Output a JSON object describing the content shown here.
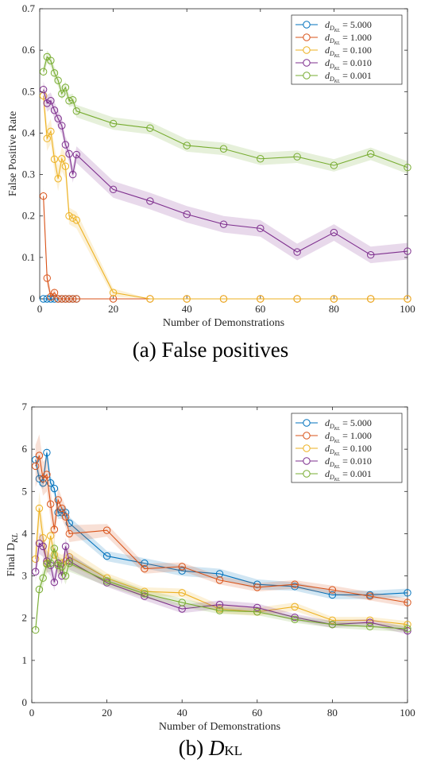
{
  "captions": {
    "a": "(a) False positives",
    "b_main": "D",
    "b_sub": "KL",
    "b_prefix": "(b) "
  },
  "legend_labels": [
    "= 5.000",
    "= 1.000",
    "= 0.100",
    "= 0.010",
    "= 0.001"
  ],
  "colors": {
    "5.000": "#0072BD",
    "1.000": "#D95319",
    "0.100": "#EDB120",
    "0.010": "#7E2F8E",
    "0.001": "#77AC30"
  },
  "chart_data": [
    {
      "type": "line",
      "xlabel": "Number of Demonstrations",
      "ylabel": "False Positive Rate",
      "xlim": [
        0,
        100
      ],
      "ylim": [
        0,
        0.7
      ],
      "xticks": [
        0,
        20,
        40,
        60,
        80,
        100
      ],
      "yticks": [
        0,
        0.1,
        0.2,
        0.3,
        0.4,
        0.5,
        0.6,
        0.7
      ],
      "ytick_labels": [
        "0",
        "0.1",
        "0.2",
        "0.3",
        "0.4",
        "0.5",
        "0.6",
        "0.7"
      ],
      "legend_position": "top-right",
      "series": [
        {
          "name": "5.000",
          "x": [
            1,
            2,
            3,
            4,
            5,
            6,
            7,
            8,
            9,
            10
          ],
          "y": [
            0,
            0,
            0,
            0,
            0,
            0,
            0,
            0,
            0,
            0
          ],
          "band": []
        },
        {
          "name": "1.000",
          "x": [
            1,
            2,
            3,
            4,
            5,
            6,
            7,
            8,
            9,
            10,
            20,
            30,
            40,
            50,
            60,
            70,
            80,
            90,
            100
          ],
          "y": [
            0.248,
            0.05,
            0.005,
            0.015,
            0,
            0,
            0,
            0,
            0,
            0,
            0,
            0,
            0,
            0,
            0,
            0,
            0,
            0,
            0
          ],
          "band": [
            0.02,
            0.02,
            0.01,
            0.01,
            0,
            0,
            0,
            0,
            0,
            0,
            0,
            0,
            0,
            0,
            0,
            0,
            0,
            0,
            0
          ]
        },
        {
          "name": "0.100",
          "x": [
            1,
            2,
            3,
            4,
            5,
            6,
            7,
            8,
            9,
            10,
            20,
            30,
            40,
            50,
            60,
            70,
            80,
            90,
            100
          ],
          "y": [
            0.49,
            0.387,
            0.404,
            0.337,
            0.29,
            0.338,
            0.32,
            0.2,
            0.195,
            0.19,
            0.015,
            0,
            0,
            0,
            0,
            0,
            0,
            0,
            0
          ],
          "band": [
            0.03,
            0.03,
            0.03,
            0.03,
            0.03,
            0.03,
            0.03,
            0.02,
            0.02,
            0.02,
            0.01,
            0,
            0,
            0,
            0,
            0,
            0,
            0,
            0
          ]
        },
        {
          "name": "0.010",
          "x": [
            1,
            2,
            3,
            4,
            5,
            6,
            7,
            8,
            9,
            10,
            20,
            30,
            40,
            50,
            60,
            70,
            80,
            90,
            100
          ],
          "y": [
            0.505,
            0.472,
            0.478,
            0.455,
            0.435,
            0.418,
            0.372,
            0.35,
            0.3,
            0.348,
            0.264,
            0.236,
            0.204,
            0.18,
            0.17,
            0.113,
            0.16,
            0.106,
            0.115
          ],
          "band": [
            0.02,
            0.02,
            0.02,
            0.02,
            0.02,
            0.02,
            0.02,
            0.02,
            0.02,
            0.02,
            0.02,
            0.02,
            0.02,
            0.02,
            0.02,
            0.02,
            0.02,
            0.02,
            0.02
          ]
        },
        {
          "name": "0.001",
          "x": [
            1,
            2,
            3,
            4,
            5,
            6,
            7,
            8,
            9,
            10,
            20,
            30,
            40,
            50,
            60,
            70,
            80,
            90,
            100
          ],
          "y": [
            0.548,
            0.584,
            0.575,
            0.545,
            0.527,
            0.495,
            0.51,
            0.478,
            0.48,
            0.453,
            0.423,
            0.412,
            0.37,
            0.362,
            0.338,
            0.343,
            0.322,
            0.35,
            0.317
          ],
          "band": [
            0.015,
            0.015,
            0.015,
            0.015,
            0.015,
            0.015,
            0.015,
            0.015,
            0.015,
            0.015,
            0.015,
            0.015,
            0.015,
            0.015,
            0.015,
            0.015,
            0.015,
            0.015,
            0.015
          ]
        }
      ]
    },
    {
      "type": "line",
      "xlabel": "Number of Demonstrations",
      "ylabel_main": "Final D",
      "ylabel_sub": "KL",
      "xlim": [
        0,
        100
      ],
      "ylim": [
        0,
        7
      ],
      "xticks": [
        0,
        20,
        40,
        60,
        80,
        100
      ],
      "yticks": [
        0,
        1,
        2,
        3,
        4,
        5,
        6,
        7
      ],
      "ytick_labels": [
        "0",
        "1",
        "2",
        "3",
        "4",
        "5",
        "6",
        "7"
      ],
      "legend_position": "top-right",
      "series": [
        {
          "name": "5.000",
          "x": [
            1,
            2,
            3,
            4,
            5,
            6,
            7,
            8,
            9,
            10,
            20,
            30,
            40,
            50,
            60,
            70,
            80,
            90,
            100
          ],
          "y": [
            5.75,
            5.3,
            5.2,
            5.92,
            5.2,
            5.07,
            4.5,
            4.5,
            4.5,
            4.25,
            3.47,
            3.3,
            3.12,
            3.05,
            2.8,
            2.75,
            2.55,
            2.55,
            2.6
          ],
          "band": [
            0.15,
            0.15,
            0.15,
            0.15,
            0.15,
            0.15,
            0.15,
            0.15,
            0.15,
            0.15,
            0.12,
            0.12,
            0.12,
            0.12,
            0.12,
            0.1,
            0.1,
            0.1,
            0.1
          ]
        },
        {
          "name": "1.000",
          "x": [
            1,
            2,
            3,
            4,
            5,
            6,
            7,
            8,
            9,
            10,
            20,
            30,
            40,
            50,
            60,
            70,
            80,
            90,
            100
          ],
          "y": [
            5.6,
            5.85,
            5.3,
            5.4,
            4.7,
            4.1,
            4.8,
            4.6,
            4.4,
            4.0,
            4.08,
            3.17,
            3.22,
            2.9,
            2.73,
            2.8,
            2.67,
            2.52,
            2.37
          ],
          "band": [
            0.5,
            0.5,
            0.4,
            0.4,
            0.35,
            0.3,
            0.3,
            0.25,
            0.25,
            0.2,
            0.15,
            0.12,
            0.1,
            0.1,
            0.1,
            0.1,
            0.1,
            0.1,
            0.1
          ]
        },
        {
          "name": "0.100",
          "x": [
            1,
            2,
            3,
            4,
            5,
            6,
            7,
            8,
            9,
            10,
            20,
            30,
            40,
            50,
            60,
            70,
            80,
            90,
            100
          ],
          "y": [
            3.4,
            4.6,
            3.9,
            3.3,
            3.95,
            3.5,
            3.3,
            3.3,
            3.35,
            3.45,
            2.95,
            2.63,
            2.6,
            2.22,
            2.15,
            2.27,
            1.95,
            1.95,
            1.85
          ],
          "band": [
            0.4,
            0.4,
            0.35,
            0.3,
            0.3,
            0.25,
            0.25,
            0.2,
            0.2,
            0.2,
            0.12,
            0.1,
            0.1,
            0.1,
            0.1,
            0.1,
            0.08,
            0.08,
            0.08
          ]
        },
        {
          "name": "0.010",
          "x": [
            1,
            2,
            3,
            4,
            5,
            6,
            7,
            8,
            9,
            10,
            20,
            30,
            40,
            50,
            60,
            70,
            80,
            90,
            100
          ],
          "y": [
            3.1,
            3.77,
            3.7,
            3.35,
            3.25,
            2.85,
            3.3,
            3.0,
            3.7,
            3.35,
            2.84,
            2.52,
            2.22,
            2.32,
            2.25,
            2.02,
            1.85,
            1.9,
            1.7
          ],
          "band": [
            0.25,
            0.25,
            0.25,
            0.25,
            0.25,
            0.2,
            0.2,
            0.2,
            0.2,
            0.2,
            0.1,
            0.1,
            0.1,
            0.1,
            0.1,
            0.08,
            0.08,
            0.08,
            0.08
          ]
        },
        {
          "name": "0.001",
          "x": [
            1,
            2,
            3,
            4,
            5,
            6,
            7,
            8,
            9,
            10,
            20,
            30,
            40,
            50,
            60,
            70,
            80,
            90,
            100
          ],
          "y": [
            1.72,
            2.68,
            2.95,
            3.28,
            3.3,
            3.65,
            3.25,
            3.22,
            3.0,
            3.3,
            2.88,
            2.58,
            2.37,
            2.18,
            2.15,
            1.97,
            1.85,
            1.8,
            1.75
          ],
          "band": [
            0.1,
            0.15,
            0.2,
            0.2,
            0.2,
            0.2,
            0.2,
            0.2,
            0.2,
            0.2,
            0.12,
            0.1,
            0.1,
            0.08,
            0.08,
            0.08,
            0.08,
            0.08,
            0.08
          ]
        }
      ]
    }
  ]
}
